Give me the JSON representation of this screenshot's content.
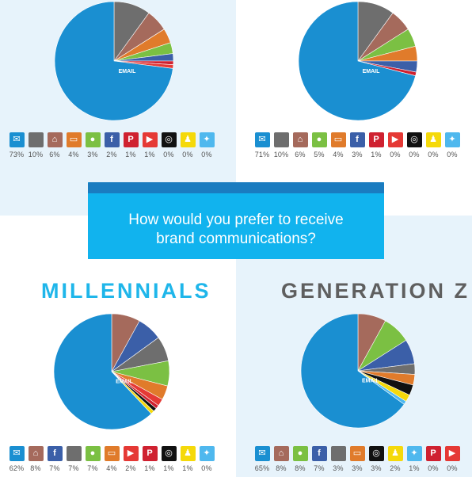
{
  "banner": {
    "line1": "How would you prefer to receive",
    "line2": "brand communications?"
  },
  "headings": {
    "millennials": "MILLENNIALS",
    "genz": "GENERATION Z"
  },
  "icons": {
    "email": {
      "color": "#1a8fd1",
      "glyph": "✉"
    },
    "dm": {
      "color": "#6e6e6e",
      "glyph": ""
    },
    "mailbox": {
      "color": "#a56a5c",
      "glyph": "⌂"
    },
    "tv": {
      "color": "#e07b2b",
      "glyph": "▭"
    },
    "sms": {
      "color": "#7bc043",
      "glyph": "●"
    },
    "facebook": {
      "color": "#3b5fa8",
      "glyph": "f"
    },
    "pinterest": {
      "color": "#cf2130",
      "glyph": "P"
    },
    "youtube": {
      "color": "#e53935",
      "glyph": "▶"
    },
    "instagram": {
      "color": "#111111",
      "glyph": "◎"
    },
    "snapchat": {
      "color": "#f5d90a",
      "glyph": "♟"
    },
    "twitter": {
      "color": "#4fb8ee",
      "glyph": "✦"
    }
  },
  "chart_data": [
    {
      "type": "pie",
      "title": "",
      "slice_label": "EMAIL",
      "slices": [
        {
          "channel": "email",
          "value": 73,
          "label": "73%"
        },
        {
          "channel": "dm",
          "value": 10,
          "label": "10%"
        },
        {
          "channel": "mailbox",
          "value": 6,
          "label": "6%"
        },
        {
          "channel": "tv",
          "value": 4,
          "label": "4%"
        },
        {
          "channel": "sms",
          "value": 3,
          "label": "3%"
        },
        {
          "channel": "facebook",
          "value": 2,
          "label": "2%"
        },
        {
          "channel": "pinterest",
          "value": 1,
          "label": "1%"
        },
        {
          "channel": "youtube",
          "value": 1,
          "label": "1%"
        },
        {
          "channel": "instagram",
          "value": 0,
          "label": "0%"
        },
        {
          "channel": "snapchat",
          "value": 0,
          "label": "0%"
        },
        {
          "channel": "twitter",
          "value": 0,
          "label": "0%"
        }
      ]
    },
    {
      "type": "pie",
      "title": "",
      "slice_label": "EMAIL",
      "slices": [
        {
          "channel": "email",
          "value": 71,
          "label": "71%"
        },
        {
          "channel": "dm",
          "value": 10,
          "label": "10%"
        },
        {
          "channel": "mailbox",
          "value": 6,
          "label": "6%"
        },
        {
          "channel": "sms",
          "value": 5,
          "label": "5%"
        },
        {
          "channel": "tv",
          "value": 4,
          "label": "4%"
        },
        {
          "channel": "facebook",
          "value": 3,
          "label": "3%"
        },
        {
          "channel": "pinterest",
          "value": 1,
          "label": "1%"
        },
        {
          "channel": "youtube",
          "value": 0,
          "label": "0%"
        },
        {
          "channel": "instagram",
          "value": 0,
          "label": "0%"
        },
        {
          "channel": "snapchat",
          "value": 0,
          "label": "0%"
        },
        {
          "channel": "twitter",
          "value": 0,
          "label": "0%"
        }
      ]
    },
    {
      "type": "pie",
      "title": "MILLENNIALS",
      "slice_label": "EMAIL",
      "slices": [
        {
          "channel": "email",
          "value": 62,
          "label": "62%"
        },
        {
          "channel": "mailbox",
          "value": 8,
          "label": "8%"
        },
        {
          "channel": "facebook",
          "value": 7,
          "label": "7%"
        },
        {
          "channel": "dm",
          "value": 7,
          "label": "7%"
        },
        {
          "channel": "sms",
          "value": 7,
          "label": "7%"
        },
        {
          "channel": "tv",
          "value": 4,
          "label": "4%"
        },
        {
          "channel": "youtube",
          "value": 2,
          "label": "2%"
        },
        {
          "channel": "pinterest",
          "value": 1,
          "label": "1%"
        },
        {
          "channel": "instagram",
          "value": 1,
          "label": "1%"
        },
        {
          "channel": "snapchat",
          "value": 1,
          "label": "1%"
        },
        {
          "channel": "twitter",
          "value": 0,
          "label": "0%"
        }
      ]
    },
    {
      "type": "pie",
      "title": "GENERATION Z",
      "slice_label": "EMAIL",
      "slices": [
        {
          "channel": "email",
          "value": 65,
          "label": "65%"
        },
        {
          "channel": "mailbox",
          "value": 8,
          "label": "8%"
        },
        {
          "channel": "sms",
          "value": 8,
          "label": "8%"
        },
        {
          "channel": "facebook",
          "value": 7,
          "label": "7%"
        },
        {
          "channel": "dm",
          "value": 3,
          "label": "3%"
        },
        {
          "channel": "tv",
          "value": 3,
          "label": "3%"
        },
        {
          "channel": "instagram",
          "value": 3,
          "label": "3%"
        },
        {
          "channel": "snapchat",
          "value": 2,
          "label": "2%"
        },
        {
          "channel": "twitter",
          "value": 1,
          "label": "1%"
        },
        {
          "channel": "pinterest",
          "value": 0,
          "label": "0%"
        },
        {
          "channel": "youtube",
          "value": 0,
          "label": "0%"
        }
      ]
    }
  ]
}
